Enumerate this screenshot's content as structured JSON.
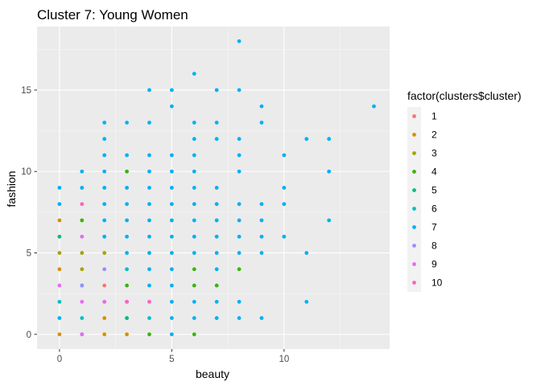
{
  "chart_data": {
    "type": "scatter",
    "title": "Cluster 7: Young Women",
    "xlabel": "beauty",
    "ylabel": "fashion",
    "xlim": [
      -1.0,
      14.7
    ],
    "ylim": [
      -0.9,
      18.9
    ],
    "xticks": [
      0,
      5,
      10
    ],
    "yticks": [
      0,
      5,
      10,
      15
    ],
    "grid": true,
    "legend": {
      "title": "factor(clusters$cluster)",
      "position": "right",
      "entries": [
        {
          "label": "1",
          "color": "#F8766D"
        },
        {
          "label": "2",
          "color": "#D89000"
        },
        {
          "label": "3",
          "color": "#A3A500"
        },
        {
          "label": "4",
          "color": "#39B600"
        },
        {
          "label": "5",
          "color": "#00BF7D"
        },
        {
          "label": "6",
          "color": "#00BFC4"
        },
        {
          "label": "7",
          "color": "#00B0F6"
        },
        {
          "label": "8",
          "color": "#9590FF"
        },
        {
          "label": "9",
          "color": "#E76BF3"
        },
        {
          "label": "10",
          "color": "#FF62BC"
        }
      ]
    },
    "series": [
      {
        "name": "1",
        "color": "#F8766D",
        "points": [
          [
            2,
            3
          ]
        ]
      },
      {
        "name": "2",
        "color": "#D89000",
        "points": [
          [
            0,
            7
          ],
          [
            0,
            4
          ],
          [
            0,
            0
          ],
          [
            2,
            1
          ],
          [
            2,
            0
          ],
          [
            3,
            0
          ]
        ]
      },
      {
        "name": "3",
        "color": "#A3A500",
        "points": [
          [
            0,
            5
          ],
          [
            1,
            5
          ],
          [
            1,
            4
          ],
          [
            2,
            5
          ],
          [
            2,
            2
          ],
          [
            3,
            1
          ]
        ]
      },
      {
        "name": "4",
        "color": "#39B600",
        "points": [
          [
            1,
            7
          ],
          [
            3,
            10
          ],
          [
            3,
            3
          ],
          [
            4,
            0
          ],
          [
            6,
            4
          ],
          [
            6,
            3
          ],
          [
            6,
            0
          ],
          [
            7,
            3
          ],
          [
            8,
            4
          ]
        ]
      },
      {
        "name": "5",
        "color": "#00BF7D",
        "points": [
          [
            0,
            6
          ],
          [
            3,
            1
          ]
        ]
      },
      {
        "name": "6",
        "color": "#00BFC4",
        "points": [
          [
            0,
            2
          ],
          [
            1,
            1
          ],
          [
            3,
            4
          ],
          [
            4,
            1
          ]
        ]
      },
      {
        "name": "7",
        "color": "#00B0F6",
        "points": [
          [
            0,
            9
          ],
          [
            0,
            8
          ],
          [
            0,
            1
          ],
          [
            1,
            10
          ],
          [
            1,
            9
          ],
          [
            1,
            3
          ],
          [
            1,
            0
          ],
          [
            2,
            13
          ],
          [
            2,
            12
          ],
          [
            2,
            11
          ],
          [
            2,
            10
          ],
          [
            2,
            9
          ],
          [
            2,
            8
          ],
          [
            2,
            7
          ],
          [
            2,
            6
          ],
          [
            3,
            13
          ],
          [
            3,
            11
          ],
          [
            3,
            9
          ],
          [
            3,
            8
          ],
          [
            3,
            7
          ],
          [
            3,
            6
          ],
          [
            3,
            5
          ],
          [
            3,
            2
          ],
          [
            4,
            15
          ],
          [
            4,
            13
          ],
          [
            4,
            11
          ],
          [
            4,
            10
          ],
          [
            4,
            9
          ],
          [
            4,
            8
          ],
          [
            4,
            7
          ],
          [
            4,
            6
          ],
          [
            4,
            5
          ],
          [
            4,
            4
          ],
          [
            4,
            3
          ],
          [
            5,
            15
          ],
          [
            5,
            14
          ],
          [
            5,
            11
          ],
          [
            5,
            10
          ],
          [
            5,
            9
          ],
          [
            5,
            8
          ],
          [
            5,
            7
          ],
          [
            5,
            6
          ],
          [
            5,
            5
          ],
          [
            5,
            4
          ],
          [
            5,
            3
          ],
          [
            5,
            2
          ],
          [
            5,
            1
          ],
          [
            5,
            0
          ],
          [
            6,
            16
          ],
          [
            6,
            13
          ],
          [
            6,
            12
          ],
          [
            6,
            11
          ],
          [
            6,
            10
          ],
          [
            6,
            9
          ],
          [
            6,
            8
          ],
          [
            6,
            7
          ],
          [
            6,
            6
          ],
          [
            6,
            5
          ],
          [
            6,
            2
          ],
          [
            6,
            1
          ],
          [
            7,
            15
          ],
          [
            7,
            13
          ],
          [
            7,
            12
          ],
          [
            7,
            9
          ],
          [
            7,
            8
          ],
          [
            7,
            7
          ],
          [
            7,
            6
          ],
          [
            7,
            5
          ],
          [
            7,
            4
          ],
          [
            7,
            2
          ],
          [
            7,
            1
          ],
          [
            8,
            18
          ],
          [
            8,
            15
          ],
          [
            8,
            12
          ],
          [
            8,
            11
          ],
          [
            8,
            10
          ],
          [
            8,
            8
          ],
          [
            8,
            7
          ],
          [
            8,
            6
          ],
          [
            8,
            5
          ],
          [
            8,
            2
          ],
          [
            8,
            1
          ],
          [
            9,
            14
          ],
          [
            9,
            13
          ],
          [
            9,
            8
          ],
          [
            9,
            7
          ],
          [
            9,
            6
          ],
          [
            9,
            5
          ],
          [
            9,
            1
          ],
          [
            10,
            11
          ],
          [
            10,
            9
          ],
          [
            10,
            8
          ],
          [
            10,
            6
          ],
          [
            11,
            12
          ],
          [
            11,
            5
          ],
          [
            11,
            2
          ],
          [
            12,
            12
          ],
          [
            12,
            10
          ],
          [
            12,
            7
          ],
          [
            14,
            14
          ]
        ]
      },
      {
        "name": "8",
        "color": "#9590FF",
        "points": [
          [
            1,
            3
          ],
          [
            2,
            4
          ]
        ]
      },
      {
        "name": "9",
        "color": "#E76BF3",
        "points": [
          [
            0,
            3
          ],
          [
            1,
            6
          ],
          [
            1,
            2
          ],
          [
            1,
            0
          ],
          [
            2,
            2
          ],
          [
            3,
            2
          ]
        ]
      },
      {
        "name": "10",
        "color": "#FF62BC",
        "points": [
          [
            1,
            8
          ],
          [
            3,
            2
          ],
          [
            4,
            2
          ]
        ]
      }
    ]
  }
}
